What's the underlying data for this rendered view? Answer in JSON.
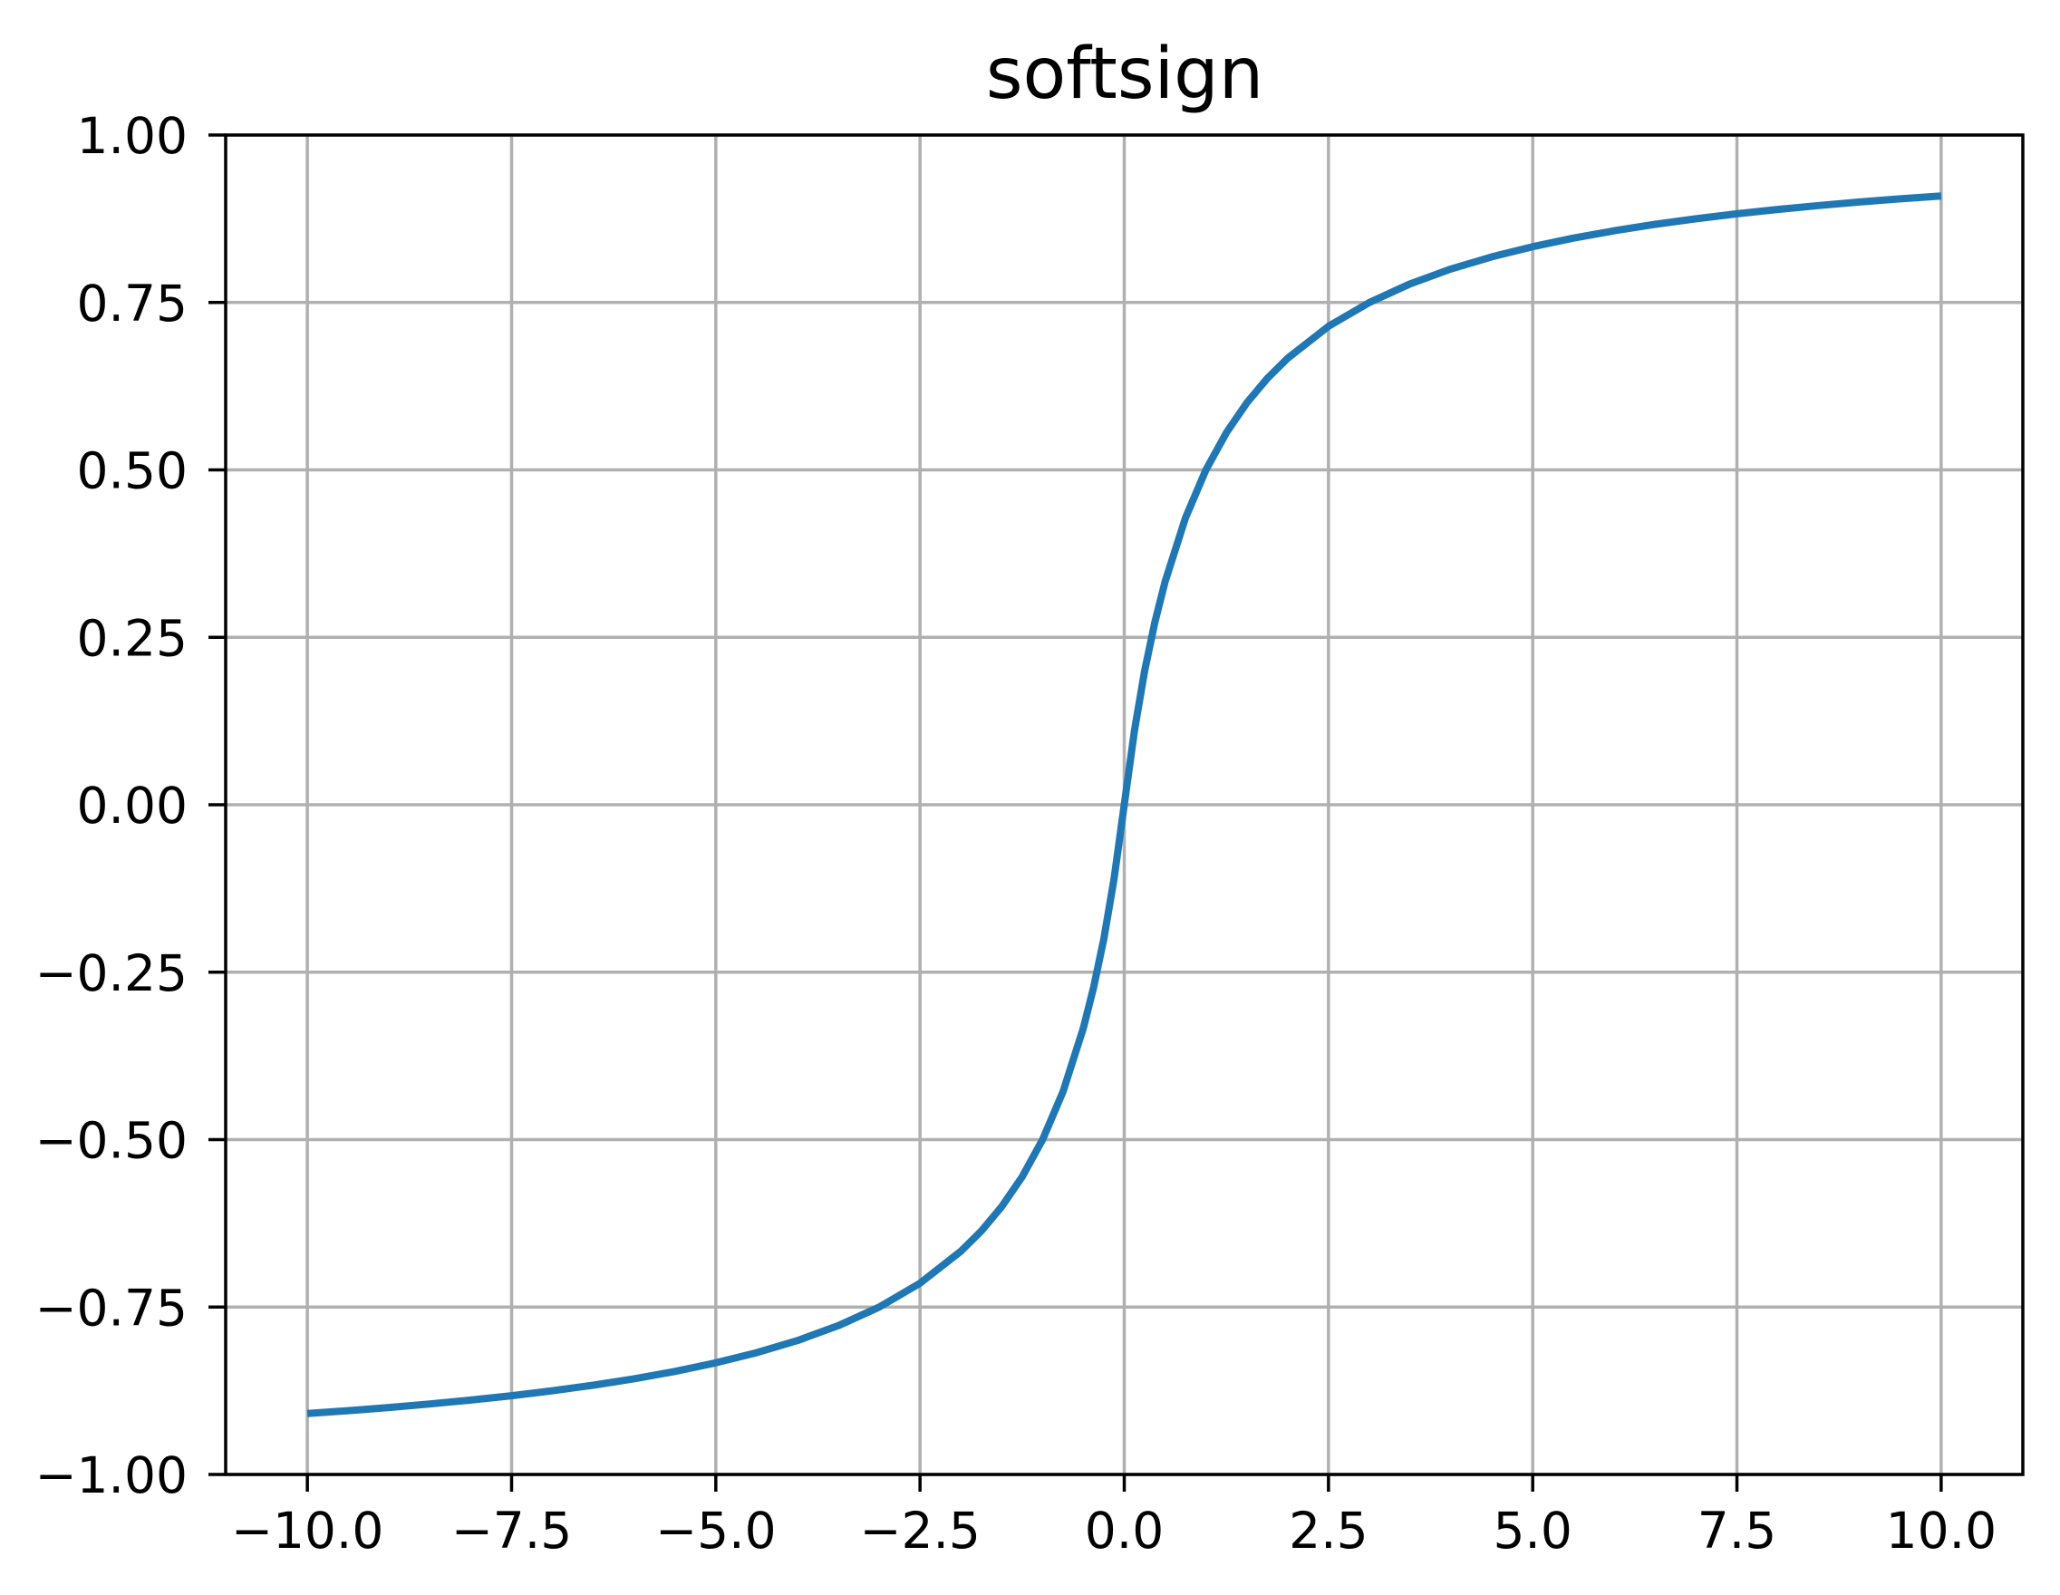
{
  "chart_data": {
    "type": "line",
    "title": "softsign",
    "xlabel": "",
    "ylabel": "",
    "xlim": [
      -11,
      11
    ],
    "ylim": [
      -1,
      1
    ],
    "grid": true,
    "xticks": [
      -10,
      -7.5,
      -5,
      -2.5,
      0,
      2.5,
      5,
      7.5,
      10
    ],
    "xtick_labels": [
      "−10.0",
      "−7.5",
      "−5.0",
      "−2.5",
      "0.0",
      "2.5",
      "5.0",
      "7.5",
      "10.0"
    ],
    "yticks": [
      -1,
      -0.75,
      -0.5,
      -0.25,
      0,
      0.25,
      0.5,
      0.75,
      1
    ],
    "ytick_labels": [
      "−1.00",
      "−0.75",
      "−0.50",
      "−0.25",
      "0.00",
      "0.25",
      "0.50",
      "0.75",
      "1.00"
    ],
    "colors": {
      "line": "#1f77b4",
      "grid": "#b0b0b0",
      "axes": "#000000"
    },
    "series": [
      {
        "x": [
          -10,
          -9.5,
          -9,
          -8.5,
          -8,
          -7.5,
          -7,
          -6.5,
          -6,
          -5.5,
          -5,
          -4.5,
          -4,
          -3.5,
          -3,
          -2.5,
          -2,
          -1.75,
          -1.5,
          -1.25,
          -1,
          -0.75,
          -0.5,
          -0.375,
          -0.25,
          -0.125,
          0,
          0.125,
          0.25,
          0.375,
          0.5,
          0.75,
          1,
          1.25,
          1.5,
          1.75,
          2,
          2.5,
          3,
          3.5,
          4,
          4.5,
          5,
          5.5,
          6,
          6.5,
          7,
          7.5,
          8,
          8.5,
          9,
          9.5,
          10
        ],
        "y": [
          -0.9091,
          -0.9048,
          -0.9,
          -0.8947,
          -0.8889,
          -0.8824,
          -0.875,
          -0.8667,
          -0.8571,
          -0.8462,
          -0.8333,
          -0.8182,
          -0.8,
          -0.7778,
          -0.75,
          -0.7143,
          -0.6667,
          -0.6364,
          -0.6,
          -0.5556,
          -0.5,
          -0.4286,
          -0.3333,
          -0.2727,
          -0.2,
          -0.1111,
          0,
          0.1111,
          0.2,
          0.2727,
          0.3333,
          0.4286,
          0.5,
          0.5556,
          0.6,
          0.6364,
          0.6667,
          0.7143,
          0.75,
          0.7778,
          0.8,
          0.8182,
          0.8333,
          0.8462,
          0.8571,
          0.8667,
          0.875,
          0.8824,
          0.8889,
          0.8947,
          0.9,
          0.9048,
          0.9091
        ]
      }
    ]
  }
}
